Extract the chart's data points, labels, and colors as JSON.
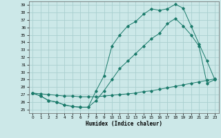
{
  "xlabel": "Humidex (Indice chaleur)",
  "bg_color": "#cce8e8",
  "grid_color": "#aad0d0",
  "line_color": "#1a7a6a",
  "xlim": [
    -0.5,
    23.5
  ],
  "ylim": [
    24.5,
    39.5
  ],
  "yticks": [
    25,
    26,
    27,
    28,
    29,
    30,
    31,
    32,
    33,
    34,
    35,
    36,
    37,
    38,
    39
  ],
  "xticks": [
    0,
    1,
    2,
    3,
    4,
    5,
    6,
    7,
    8,
    9,
    10,
    11,
    12,
    13,
    14,
    15,
    16,
    17,
    18,
    19,
    20,
    21,
    22,
    23
  ],
  "line1_x": [
    0,
    1,
    2,
    3,
    4,
    5,
    6,
    7,
    8,
    9,
    10,
    11,
    12,
    13,
    14,
    15,
    16,
    17,
    18,
    19,
    20,
    21,
    22,
    23
  ],
  "line1_y": [
    27.2,
    26.8,
    26.2,
    26.0,
    25.6,
    25.4,
    25.3,
    25.3,
    27.5,
    29.5,
    33.5,
    35.0,
    36.2,
    36.8,
    37.8,
    38.5,
    38.3,
    38.5,
    39.1,
    38.6,
    36.2,
    33.8,
    31.5,
    29.0
  ],
  "line2_x": [
    0,
    1,
    2,
    3,
    4,
    5,
    6,
    7,
    8,
    9,
    10,
    11,
    12,
    13,
    14,
    15,
    16,
    17,
    18,
    19,
    20,
    21,
    22,
    23
  ],
  "line2_y": [
    27.2,
    27.1,
    27.0,
    26.9,
    26.8,
    26.8,
    26.7,
    26.7,
    26.7,
    26.8,
    26.9,
    27.0,
    27.1,
    27.2,
    27.4,
    27.5,
    27.7,
    27.9,
    28.1,
    28.3,
    28.5,
    28.7,
    28.9,
    29.1
  ],
  "line3_x": [
    0,
    1,
    2,
    3,
    4,
    5,
    6,
    7,
    8,
    9,
    10,
    11,
    12,
    13,
    14,
    15,
    16,
    17,
    18,
    19,
    20,
    21,
    22,
    23
  ],
  "line3_y": [
    27.2,
    26.8,
    26.2,
    26.0,
    25.6,
    25.4,
    25.3,
    25.3,
    26.2,
    27.5,
    29.0,
    30.5,
    31.5,
    32.5,
    33.5,
    34.5,
    35.2,
    36.5,
    37.2,
    36.2,
    35.0,
    33.5,
    28.5,
    29.0
  ]
}
